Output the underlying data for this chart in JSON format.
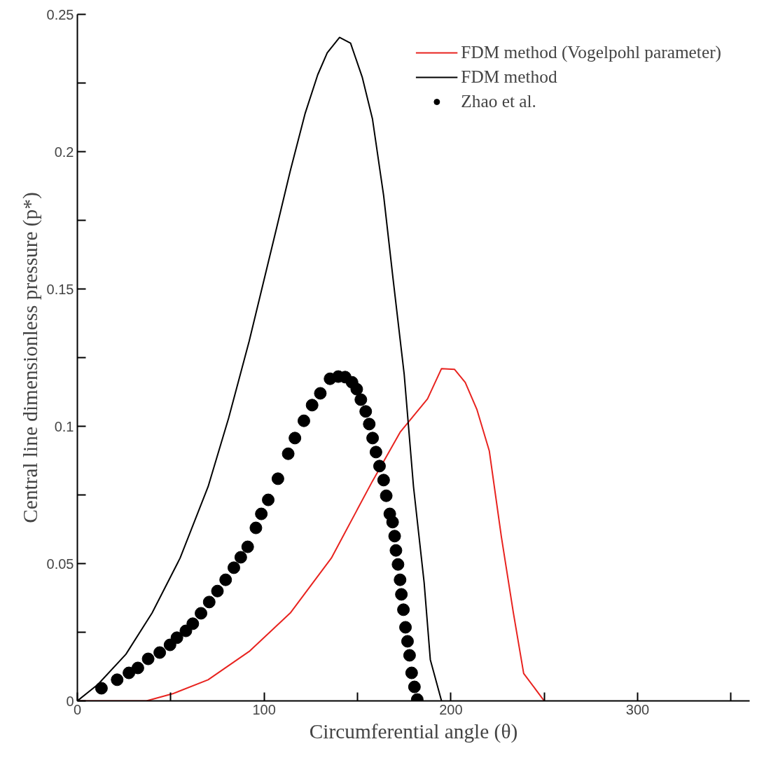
{
  "chart_data": {
    "type": "line",
    "xlabel": "Circumferential angle (θ)",
    "ylabel": "Central line dimensionless pressure (p*)",
    "xlim": [
      0,
      360
    ],
    "ylim": [
      0,
      0.25
    ],
    "xticks": [
      0,
      {
        "value": 50,
        "label": null
      },
      100,
      {
        "value": 150,
        "label": null
      },
      200,
      {
        "value": 250,
        "label": null
      },
      300,
      {
        "value": 350,
        "label": null
      }
    ],
    "yticks": [
      0,
      {
        "value": 0.025,
        "label": null
      },
      0.05,
      {
        "value": 0.075,
        "label": null
      },
      0.1,
      {
        "value": 0.125,
        "label": null
      },
      0.15,
      {
        "value": 0.175,
        "label": null
      },
      0.2,
      {
        "value": 0.225,
        "label": null
      },
      0.25
    ],
    "grid": false,
    "legend": "top right",
    "series": [
      {
        "name": "FDM method (Vogelpohl parameter)",
        "color": "#e8231f",
        "x": [
          0,
          37,
          51,
          70,
          92,
          114,
          136,
          158,
          173,
          187.5,
          195,
          202,
          207.7,
          214,
          220.6,
          227,
          233.5,
          239,
          250
        ],
        "values": [
          0,
          0,
          0.0026,
          0.0077,
          0.018,
          0.032,
          0.052,
          0.08,
          0.098,
          0.11,
          0.121,
          0.1207,
          0.116,
          0.106,
          0.091,
          0.06,
          0.032,
          0.01,
          0
        ]
      },
      {
        "name": "FDM method",
        "color": "#000000",
        "x": [
          0,
          11,
          26,
          40,
          55,
          70,
          81,
          92,
          106.6,
          114,
          122,
          128.7,
          133.8,
          140.4,
          146.3,
          152.6,
          158,
          164,
          169,
          175,
          180,
          185.7,
          189,
          195
        ],
        "values": [
          0,
          0.006,
          0.017,
          0.032,
          0.052,
          0.078,
          0.103,
          0.131,
          0.172,
          0.193,
          0.214,
          0.228,
          0.236,
          0.2416,
          0.2395,
          0.227,
          0.212,
          0.184,
          0.154,
          0.119,
          0.078,
          0.043,
          0.015,
          0
        ]
      },
      {
        "name": "Zhao et al.",
        "type": "scatter",
        "marker": "circle",
        "color": "#000000",
        "x": [
          12.9,
          21.3,
          27.6,
          32.4,
          37.9,
          44.1,
          49.6,
          53.3,
          58.1,
          61.8,
          66.2,
          70.6,
          75.0,
          79.4,
          83.8,
          87.5,
          91.2,
          95.6,
          98.5,
          102.2,
          107.4,
          112.9,
          116.5,
          121.3,
          125.7,
          130.1,
          135.3,
          139.7,
          143.4,
          147.1,
          149.6,
          151.8,
          154.4,
          156.3,
          158.1,
          159.9,
          161.8,
          164.0,
          165.4,
          167.3,
          168.8,
          169.9,
          170.6,
          171.7,
          172.8,
          173.5,
          174.6,
          175.7,
          176.8,
          177.9,
          179.0,
          180.5,
          182.0
        ],
        "values": [
          0.0046,
          0.0077,
          0.0102,
          0.012,
          0.0153,
          0.0176,
          0.0204,
          0.023,
          0.0255,
          0.0281,
          0.0319,
          0.036,
          0.04,
          0.0441,
          0.0485,
          0.0523,
          0.0561,
          0.063,
          0.0681,
          0.0732,
          0.0809,
          0.09,
          0.0957,
          0.102,
          0.1077,
          0.112,
          0.1173,
          0.1181,
          0.1179,
          0.116,
          0.1135,
          0.1097,
          0.1054,
          0.1008,
          0.0957,
          0.0906,
          0.0855,
          0.0804,
          0.0747,
          0.0681,
          0.0651,
          0.06,
          0.0548,
          0.0497,
          0.0441,
          0.0388,
          0.0332,
          0.0268,
          0.0217,
          0.0166,
          0.0102,
          0.0051,
          0.0005
        ]
      }
    ]
  }
}
